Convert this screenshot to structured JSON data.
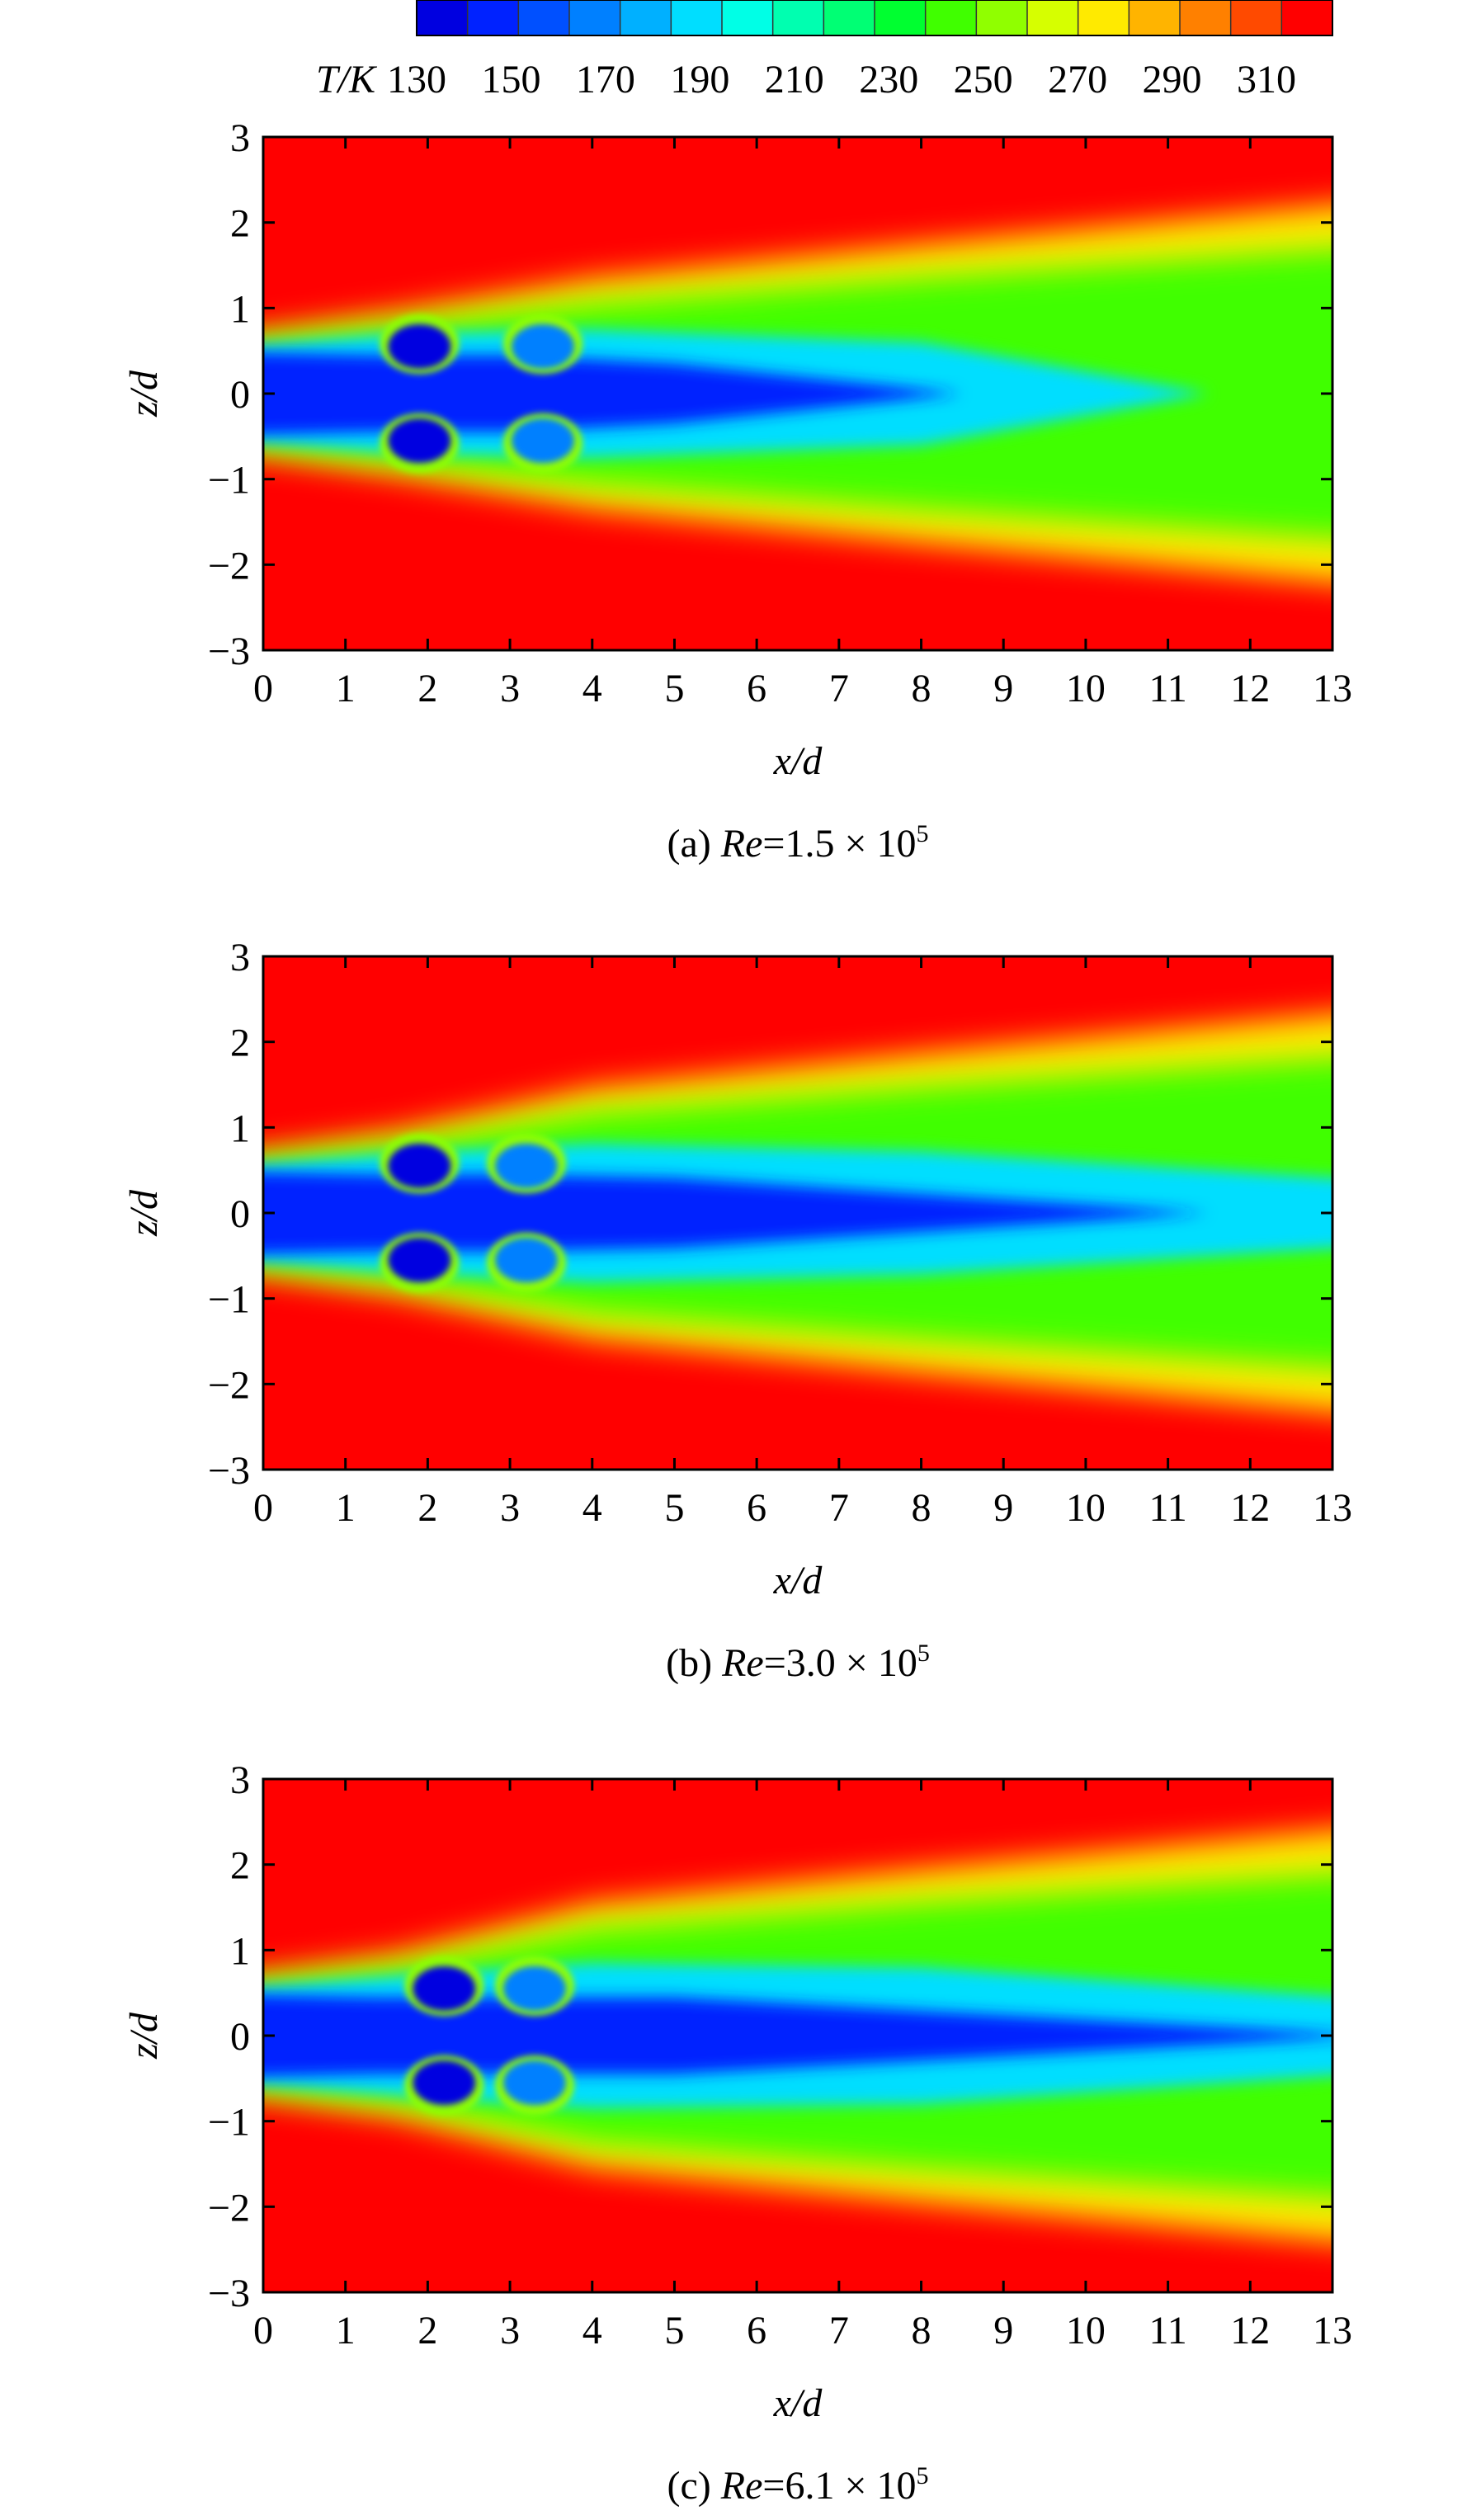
{
  "chart_data": [
    {
      "type": "colorbar",
      "label": "T/K",
      "clim": [
        130,
        310
      ],
      "cticks": [
        130,
        150,
        170,
        190,
        210,
        230,
        250,
        270,
        290,
        310
      ],
      "colors": [
        "#0000e0",
        "#0022ff",
        "#0050ff",
        "#0080ff",
        "#00b0ff",
        "#00deff",
        "#00ffe6",
        "#00ffb0",
        "#00ff74",
        "#00ff30",
        "#40ff00",
        "#90ff00",
        "#d6ff00",
        "#ffea00",
        "#ffb400",
        "#ff8000",
        "#ff4a00",
        "#ff0000"
      ]
    },
    {
      "type": "contour",
      "caption": {
        "prefix": "(a) ",
        "var": "Re",
        "mid": "=1.5 × 10",
        "exp": "5"
      },
      "xlabel": "x/d",
      "ylabel": "z/d",
      "xlim": [
        0,
        13
      ],
      "ylim": [
        -3,
        3
      ],
      "xticks": [
        0,
        1,
        2,
        3,
        4,
        5,
        6,
        7,
        8,
        9,
        10,
        11,
        12,
        13
      ],
      "yticks": [
        {
          "value": -3,
          "label": "−3"
        },
        {
          "value": -2,
          "label": "−2"
        },
        {
          "value": -1,
          "label": "−1"
        },
        0,
        1,
        2,
        3
      ]
    },
    {
      "type": "contour",
      "caption": {
        "prefix": "(b) ",
        "var": "Re",
        "mid": "=3.0 × 10",
        "exp": "5"
      },
      "xlabel": "x/d",
      "ylabel": "z/d",
      "xlim": [
        0,
        13
      ],
      "ylim": [
        -3,
        3
      ],
      "xticks": [
        0,
        1,
        2,
        3,
        4,
        5,
        6,
        7,
        8,
        9,
        10,
        11,
        12,
        13
      ],
      "yticks": [
        {
          "value": -3,
          "label": "−3"
        },
        {
          "value": -2,
          "label": "−2"
        },
        {
          "value": -1,
          "label": "−1"
        },
        0,
        1,
        2,
        3
      ]
    },
    {
      "type": "contour",
      "caption": {
        "prefix": "(c) ",
        "var": "Re",
        "mid": "=6.1 × 10",
        "exp": "5"
      },
      "xlabel": "x/d",
      "ylabel": "z/d",
      "xlim": [
        0,
        13
      ],
      "ylim": [
        -3,
        3
      ],
      "xticks": [
        0,
        1,
        2,
        3,
        4,
        5,
        6,
        7,
        8,
        9,
        10,
        11,
        12,
        13
      ],
      "yticks": [
        {
          "value": -3,
          "label": "−3"
        },
        {
          "value": -2,
          "label": "−2"
        },
        {
          "value": -1,
          "label": "−1"
        },
        0,
        1,
        2,
        3
      ]
    }
  ]
}
